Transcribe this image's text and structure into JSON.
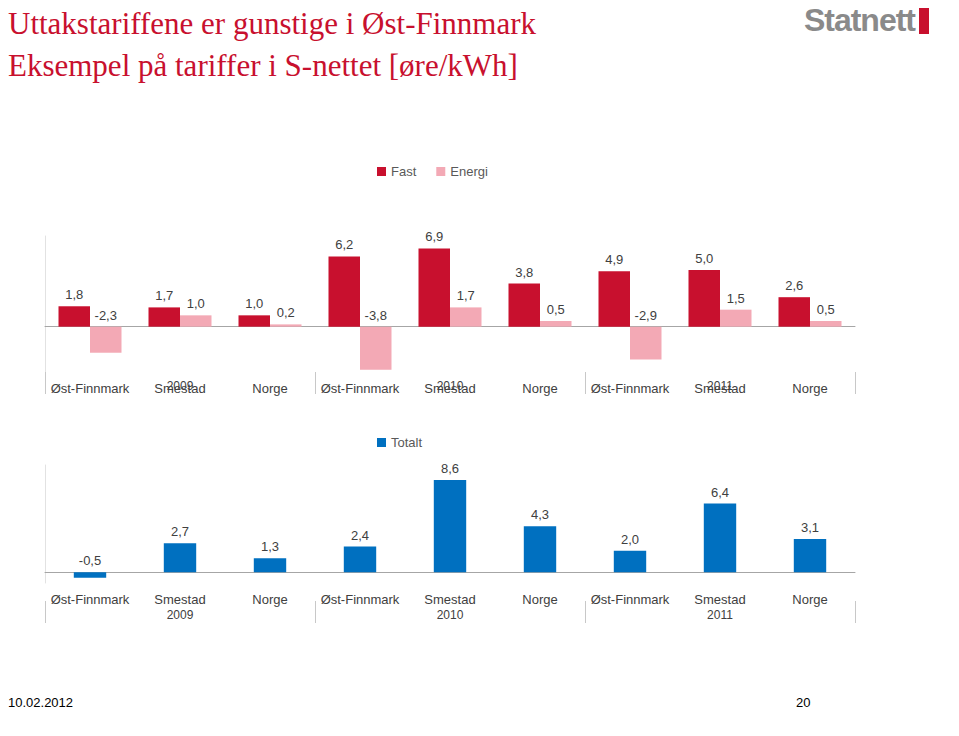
{
  "title": "Uttakstariffene er gunstige i Øst-Finnmark",
  "subtitle": "Eksempel på tariffer i S-nettet [øre/kWh]",
  "logo": "Statnett",
  "footer": {
    "date": "10.02.2012",
    "page": "20"
  },
  "chart_data": [
    {
      "type": "bar",
      "categories": [
        "Øst-Finnmark",
        "Smestad",
        "Norge",
        "Øst-Finnmark",
        "Smestad",
        "Norge",
        "Øst-Finnmark",
        "Smestad",
        "Norge"
      ],
      "groups": [
        "2009",
        "2010",
        "2011"
      ],
      "series": [
        {
          "name": "Fast",
          "color": "#c8102e",
          "values": [
            1.8,
            1.7,
            1.0,
            6.2,
            6.9,
            3.8,
            4.9,
            5.0,
            2.6
          ],
          "value_labels": [
            "1,8",
            "1,7",
            "1,0",
            "6,2",
            "6,9",
            "3,8",
            "4,9",
            "5,0",
            "2,6"
          ]
        },
        {
          "name": "Energi",
          "color": "#f3a9b5",
          "values": [
            -2.3,
            1.0,
            0.2,
            -3.8,
            1.7,
            0.5,
            -2.9,
            1.5,
            0.5
          ],
          "value_labels": [
            "-2,3",
            "1,0",
            "0,2",
            "-3,8",
            "1,7",
            "0,5",
            "-2,9",
            "1,5",
            "0,5"
          ]
        }
      ],
      "ylim": [
        -4,
        8
      ],
      "legend": "top",
      "data_labels": true,
      "tick_labels": "x",
      "grid": false
    },
    {
      "type": "bar",
      "categories": [
        "Øst-Finnmark",
        "Smestad",
        "Norge",
        "Øst-Finnmark",
        "Smestad",
        "Norge",
        "Øst-Finnmark",
        "Smestad",
        "Norge"
      ],
      "groups": [
        "2009",
        "2010",
        "2011"
      ],
      "series": [
        {
          "name": "Totalt",
          "color": "#0070c0",
          "values": [
            -0.5,
            2.7,
            1.3,
            2.4,
            8.6,
            4.3,
            2.0,
            6.4,
            3.1
          ],
          "value_labels": [
            "-0,5",
            "2,7",
            "1,3",
            "2,4",
            "8,6",
            "4,3",
            "2,0",
            "6,4",
            "3,1"
          ]
        }
      ],
      "ylim": [
        -1,
        10
      ],
      "legend": "top",
      "data_labels": true,
      "tick_labels": "x",
      "grid": false
    }
  ]
}
